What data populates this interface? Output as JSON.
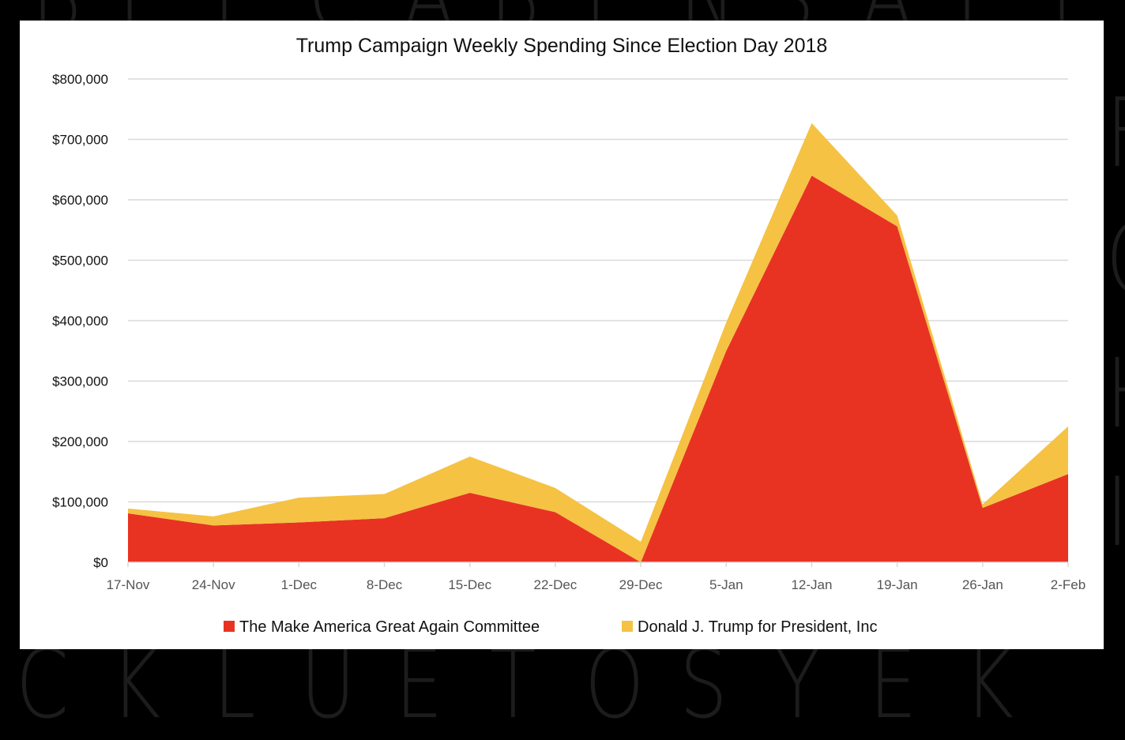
{
  "background": {
    "color": "#000000",
    "letter_color": "#1c1c1c",
    "top_row": [
      "B",
      "I",
      "L",
      "C",
      "A",
      "B",
      "E",
      "N",
      "S",
      "A",
      "I",
      "L"
    ],
    "bottom_row": [
      "C",
      "K",
      "L",
      "U",
      "E",
      "T",
      "O",
      "S",
      "Y",
      "E",
      "K"
    ],
    "right_column": [
      "F",
      "O",
      "H",
      "I"
    ]
  },
  "chart_data": {
    "type": "area",
    "stacked": true,
    "title": "Trump Campaign Weekly Spending Since Election Day 2018",
    "xlabel": "",
    "ylabel": "",
    "categories": [
      "17-Nov",
      "24-Nov",
      "1-Dec",
      "8-Dec",
      "15-Dec",
      "22-Dec",
      "29-Dec",
      "5-Jan",
      "12-Jan",
      "19-Jan",
      "26-Jan",
      "2-Feb"
    ],
    "series": [
      {
        "name": "The Make America Great Again Committee",
        "color": "#e83323",
        "values": [
          81000,
          61000,
          66000,
          73000,
          115000,
          83000,
          0,
          350000,
          640000,
          556000,
          90000,
          146000
        ]
      },
      {
        "name": "Donald J. Trump for President, Inc",
        "color": "#f5c244",
        "values": [
          8000,
          15000,
          41000,
          40000,
          60000,
          40000,
          34000,
          47000,
          87000,
          18000,
          6000,
          79000
        ]
      }
    ],
    "ylim": [
      0,
      800000
    ],
    "yticks": [
      0,
      100000,
      200000,
      300000,
      400000,
      500000,
      600000,
      700000,
      800000
    ],
    "ytick_labels": [
      "$0",
      "$100,000",
      "$200,000",
      "$300,000",
      "$400,000",
      "$500,000",
      "$600,000",
      "$700,000",
      "$800,000"
    ],
    "grid": true,
    "grid_color": "#d9d9d9",
    "legend_position": "bottom-center"
  }
}
